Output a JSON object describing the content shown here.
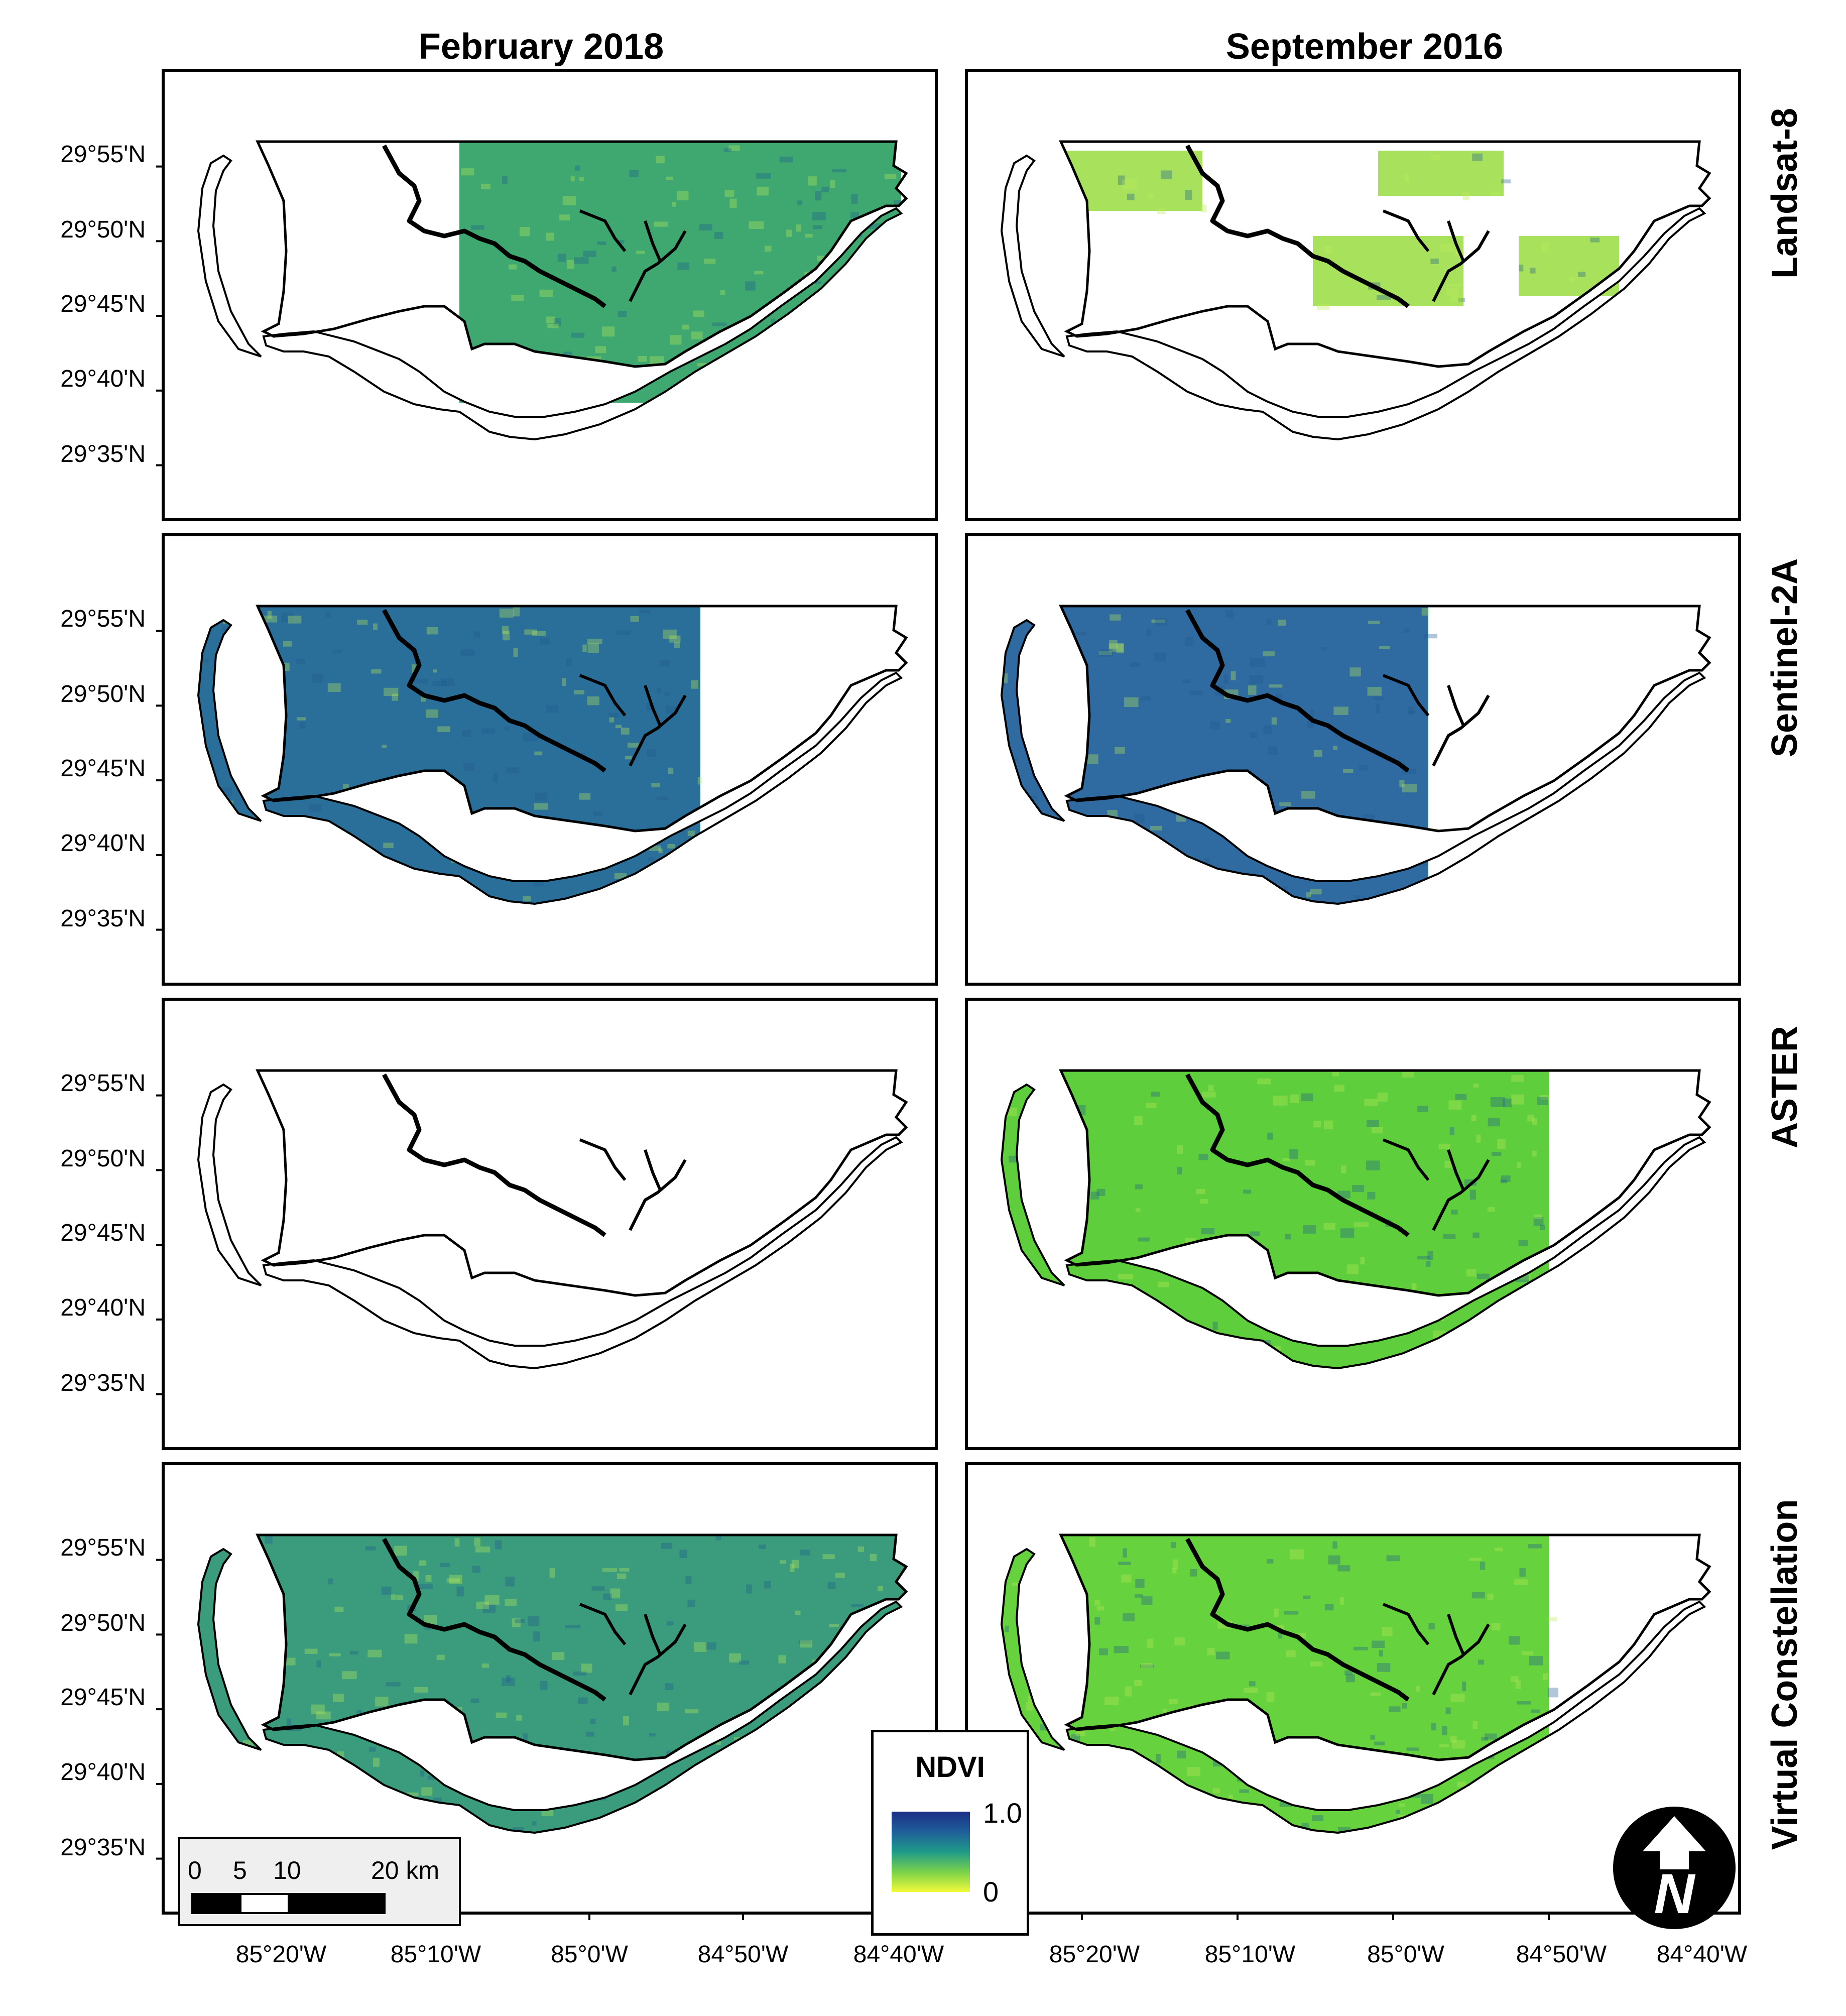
{
  "columns": [
    {
      "title": "February 2018"
    },
    {
      "title": "September 2016"
    }
  ],
  "rows": [
    {
      "label": "Landsat-8"
    },
    {
      "label": "Sentinel-2A"
    },
    {
      "label": "ASTER"
    },
    {
      "label": "Virtual Constellation"
    }
  ],
  "panels": [
    {
      "row": 0,
      "col": 0,
      "coverage": "partial-east",
      "color": "#3ea870",
      "fill": 0.6
    },
    {
      "row": 0,
      "col": 1,
      "coverage": "sparse-patches",
      "color": "#a8e25c",
      "fill": 0.15
    },
    {
      "row": 1,
      "col": 0,
      "coverage": "most",
      "color": "#2a6e9a",
      "fill": 0.85
    },
    {
      "row": 1,
      "col": 1,
      "coverage": "west-block",
      "color": "#2f6aa0",
      "fill": 0.4
    },
    {
      "row": 2,
      "col": 0,
      "coverage": "none",
      "color": "#ffffff",
      "fill": 0.0
    },
    {
      "row": 2,
      "col": 1,
      "coverage": "most-green",
      "color": "#5fce3c",
      "fill": 0.85
    },
    {
      "row": 3,
      "col": 0,
      "coverage": "full",
      "color": "#3a9c7d",
      "fill": 0.95
    },
    {
      "row": 3,
      "col": 1,
      "coverage": "most-green",
      "color": "#66d23e",
      "fill": 0.88
    }
  ],
  "lat_labels": [
    "29°55'N",
    "29°50'N",
    "29°45'N",
    "29°40'N",
    "29°35'N"
  ],
  "lon_labels": [
    "85°20'W",
    "85°10'W",
    "85°0'W",
    "84°50'W",
    "84°40'W"
  ],
  "legend": {
    "title": "NDVI",
    "max": "1.0",
    "min": "0"
  },
  "scale": {
    "ticks": [
      "0",
      "5",
      "10",
      "20 km"
    ]
  },
  "north_arrow": {
    "letter": "N",
    "icon": "north-arrow-icon"
  }
}
